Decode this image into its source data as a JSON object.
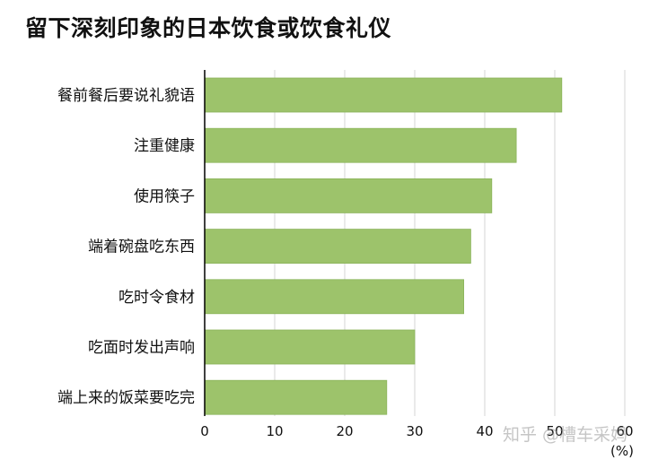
{
  "title": "留下深刻印象的日本饮食或饮食礼仪",
  "watermark": "知乎 @槽车采妈",
  "chart_data": {
    "type": "bar",
    "orientation": "horizontal",
    "categories": [
      "餐前餐后要说礼貌语",
      "注重健康",
      "使用筷子",
      "端着碗盘吃东西",
      "吃时令食材",
      "吃面时发出声响",
      "端上来的饭菜要吃完"
    ],
    "values": [
      51,
      44.5,
      41,
      38,
      37,
      30,
      26
    ],
    "xlim": [
      0,
      60
    ],
    "xticks": [
      0,
      10,
      20,
      30,
      40,
      50,
      60
    ],
    "xunit": "(%)",
    "grid": true,
    "bar_color": "#9dc36b"
  }
}
